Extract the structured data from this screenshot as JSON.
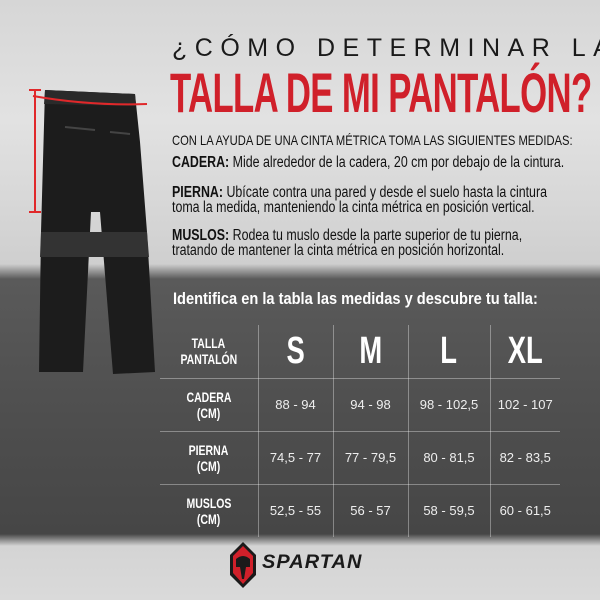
{
  "title": {
    "line1": "¿CÓMO DETERMINAR LA",
    "line2": "TALLA DE MI PANTALÓN?"
  },
  "instructions": {
    "intro": "CON LA AYUDA DE UNA CINTA MÉTRICA TOMA LAS SIGUIENTES MEDIDAS:",
    "cadera_label": "CADERA:",
    "cadera_text": "Mide alrededor de la cadera, 20 cm por debajo de la cintura.",
    "pierna_label": "PIERNA:",
    "pierna_text1": "Ubícate contra una pared y desde el suelo hasta la cintura",
    "pierna_text2": "toma la medida, manteniendo la cinta métrica en posición vertical.",
    "muslos_label": "MUSLOS:",
    "muslos_text1": "Rodea tu muslo desde la parte superior de tu pierna,",
    "muslos_text2": "tratando de mantener la cinta métrica en posición horizontal."
  },
  "table_intro": "Identifica en la tabla las medidas y descubre tu talla:",
  "table": {
    "header_label1": "TALLA",
    "header_label2": "PANTALÓN",
    "sizes": [
      "S",
      "M",
      "L",
      "XL"
    ],
    "rows": [
      {
        "label1": "CADERA",
        "label2": "(CM)",
        "values": [
          "88 - 94",
          "94 - 98",
          "98 - 102,5",
          "102 - 107"
        ]
      },
      {
        "label1": "PIERNA",
        "label2": "(CM)",
        "values": [
          "74,5 - 77",
          "77 - 79,5",
          "80 - 81,5",
          "82 - 83,5"
        ]
      },
      {
        "label1": "MUSLOS",
        "label2": "(CM)",
        "values": [
          "52,5 - 55",
          "56 - 57",
          "58 - 59,5",
          "60 - 61,5"
        ]
      }
    ]
  },
  "brand": {
    "name": "SPARTAN"
  },
  "colors": {
    "accent": "#d0202a",
    "dark_band": "#4e4e4e",
    "text": "#111111"
  }
}
